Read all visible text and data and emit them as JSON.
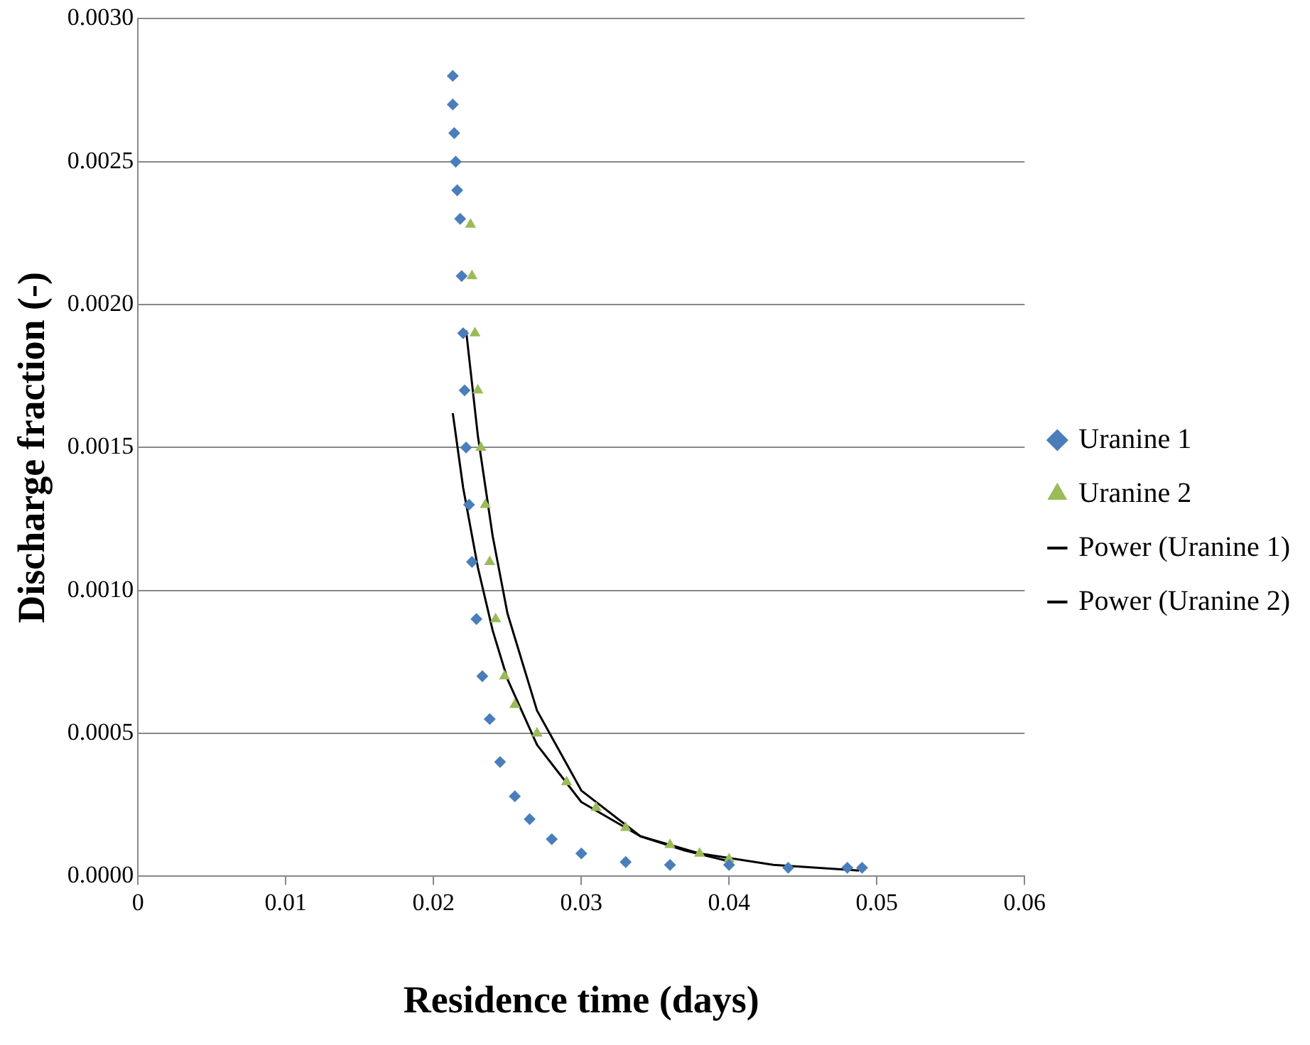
{
  "chart_data": {
    "type": "scatter",
    "xlabel": "Residence time (days)",
    "ylabel": "Discharge fraction (-)",
    "xlim": [
      0,
      0.06
    ],
    "xticks": [
      0,
      0.01,
      0.02,
      0.03,
      0.04,
      0.05,
      0.06
    ],
    "ylim": [
      0,
      0.003
    ],
    "yticks": [
      {
        "value": 0,
        "label": "0.0000"
      },
      {
        "value": 0.0005,
        "label": "0.0005"
      },
      {
        "value": 0.001,
        "label": "0.0010"
      },
      {
        "value": 0.0015,
        "label": "0.0015"
      },
      {
        "value": 0.002,
        "label": "0.0020"
      },
      {
        "value": 0.0025,
        "label": "0.0025"
      },
      {
        "value": 0.003,
        "label": "0.0030"
      }
    ],
    "grid": "y",
    "legend": "right",
    "series": [
      {
        "name": "Uranine 1",
        "type": "scatter",
        "marker": "diamond",
        "color": "#4a7ebb",
        "x": [
          0.0213,
          0.0213,
          0.0214,
          0.0215,
          0.0216,
          0.0218,
          0.0219,
          0.022,
          0.0221,
          0.0222,
          0.0224,
          0.0226,
          0.0229,
          0.0233,
          0.0238,
          0.0245,
          0.0255,
          0.0265,
          0.028,
          0.03,
          0.033,
          0.036,
          0.04,
          0.044,
          0.048,
          0.049
        ],
        "values": [
          0.0028,
          0.0027,
          0.0026,
          0.0025,
          0.0024,
          0.0023,
          0.0021,
          0.0019,
          0.0017,
          0.0015,
          0.0013,
          0.0011,
          0.0009,
          0.0007,
          0.00055,
          0.0004,
          0.00028,
          0.0002,
          0.00013,
          8e-05,
          5e-05,
          4e-05,
          4e-05,
          3e-05,
          3e-05,
          3e-05
        ]
      },
      {
        "name": "Uranine 2",
        "type": "scatter",
        "marker": "triangle",
        "color": "#9bbb59",
        "x": [
          0.0225,
          0.0226,
          0.0228,
          0.023,
          0.0232,
          0.0235,
          0.0238,
          0.0242,
          0.0248,
          0.0255,
          0.027,
          0.029,
          0.031,
          0.033,
          0.036,
          0.038,
          0.04
        ],
        "values": [
          0.00228,
          0.0021,
          0.0019,
          0.0017,
          0.0015,
          0.0013,
          0.0011,
          0.0009,
          0.0007,
          0.0006,
          0.0005,
          0.00033,
          0.00024,
          0.00017,
          0.00011,
          8e-05,
          6e-05
        ]
      },
      {
        "name": "Power (Uranine 1)",
        "type": "line",
        "marker": "none",
        "color": "#000000",
        "x": [
          0.0213,
          0.022,
          0.023,
          0.024,
          0.025,
          0.027,
          0.03,
          0.034,
          0.038,
          0.043,
          0.0488
        ],
        "values": [
          0.00162,
          0.00136,
          0.00108,
          0.00086,
          0.00069,
          0.00046,
          0.00026,
          0.00014,
          8e-05,
          4e-05,
          2e-05
        ]
      },
      {
        "name": "Power (Uranine 2)",
        "type": "line",
        "marker": "none",
        "color": "#000000",
        "x": [
          0.0222,
          0.023,
          0.024,
          0.025,
          0.027,
          0.03,
          0.034,
          0.037,
          0.0402
        ],
        "values": [
          0.00191,
          0.00154,
          0.00119,
          0.00092,
          0.00058,
          0.0003,
          0.00014,
          9e-05,
          5e-05
        ]
      }
    ]
  }
}
